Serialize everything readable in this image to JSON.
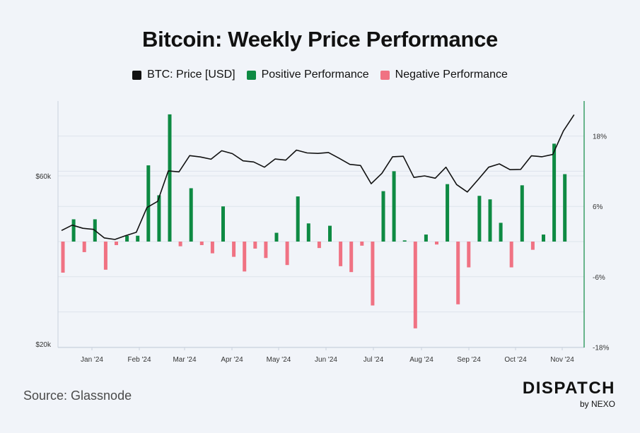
{
  "chart_data": {
    "type": "bar+line",
    "title": "Bitcoin: Weekly Price Performance",
    "legend": [
      {
        "label": "BTC: Price [USD]",
        "color": "#111111"
      },
      {
        "label": "Positive Performance",
        "color": "#0e8a43"
      },
      {
        "label": "Negative Performance",
        "color": "#f07283"
      }
    ],
    "x_tick_labels": [
      "Jan '24",
      "Feb '24",
      "Mar '24",
      "Apr '24",
      "May '24",
      "Jun '24",
      "Jul '24",
      "Aug '24",
      "Sep '24",
      "Oct '24",
      "Nov '24"
    ],
    "left_axis": {
      "labels": [
        "$60k",
        "$20k"
      ],
      "scale": "log",
      "range": [
        20000,
        90000
      ]
    },
    "right_axis": {
      "labels": [
        "18%",
        "6%",
        "-6%",
        "-18%"
      ],
      "range": [
        -18,
        21
      ]
    },
    "weekly_performance_pct": [
      -5.3,
      3.8,
      -1.8,
      3.8,
      -4.8,
      -0.6,
      1.0,
      1.0,
      13.0,
      7.9,
      21.7,
      -0.8,
      9.1,
      -0.6,
      -2.0,
      6.0,
      -2.6,
      -5.1,
      -1.2,
      -2.8,
      1.5,
      -4.0,
      7.7,
      3.1,
      -1.1,
      2.7,
      -4.2,
      -5.2,
      -0.7,
      -10.9,
      8.6,
      12.0,
      0.2,
      -14.8,
      1.2,
      -0.5,
      9.8,
      -10.7,
      -4.4,
      7.8,
      7.2,
      3.2,
      -4.4,
      9.6,
      -1.4,
      1.2,
      16.7,
      11.5
    ],
    "weekly_price_usd": [
      42000,
      43500,
      42600,
      42300,
      40000,
      39600,
      40600,
      41500,
      48800,
      50800,
      62000,
      61600,
      68500,
      67900,
      66900,
      70700,
      69400,
      66200,
      65700,
      63500,
      67000,
      66500,
      71000,
      69700,
      69500,
      69900,
      67300,
      64700,
      64200,
      57000,
      61000,
      68000,
      68200,
      59400,
      60000,
      59100,
      63500,
      56700,
      54000,
      58500,
      63500,
      64900,
      62500,
      62600,
      68400,
      68000,
      69000,
      80500,
      89500
    ]
  },
  "footer": {
    "source": "Source: Glassnode",
    "brand": "DISPATCH",
    "brand_sub": "by NEXO"
  }
}
